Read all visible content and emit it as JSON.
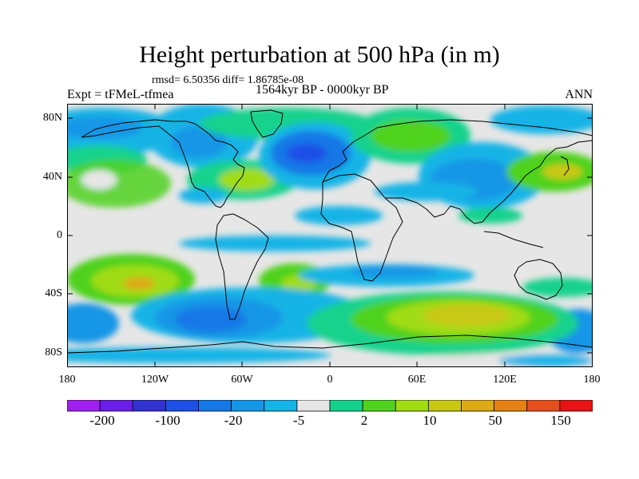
{
  "title": "Height perturbation at 500 hPa (in m)",
  "stats_line": "rmsd= 6.50356 diff= 1.86785e-08",
  "expt_label": "Expt = tFMeL-tfmea",
  "period_label": "1564kyr BP - 0000kyr BP",
  "season_label": "ANN",
  "lat_labels": [
    "80N",
    "40N",
    "0",
    "40S",
    "80S"
  ],
  "lon_labels": [
    "180",
    "120W",
    "60W",
    "0",
    "60E",
    "120E",
    "180"
  ],
  "colorbar": {
    "colors": [
      "#a020f0",
      "#6a1ee6",
      "#3232d2",
      "#1e50e6",
      "#1478e6",
      "#1496e6",
      "#14b4e6",
      "#e6e6e6",
      "#14d28c",
      "#50d21e",
      "#a0dc14",
      "#c8c814",
      "#dcaa14",
      "#e68214",
      "#e6501e",
      "#e61414"
    ],
    "tick_labels": [
      "-200",
      "-100",
      "-20",
      "-5",
      "2",
      "10",
      "50",
      "150"
    ]
  },
  "map_legend_colors": {
    "background": "#e6e6e6",
    "coast": "#000000"
  }
}
